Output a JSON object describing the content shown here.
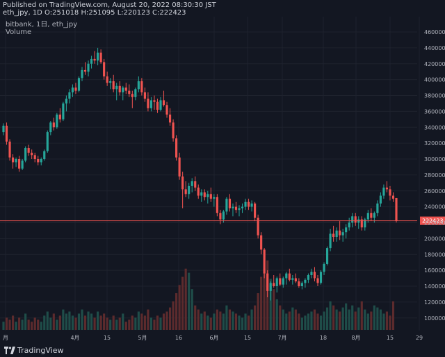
{
  "header": {
    "published": "Published on TradingView.com, August 20, 2022 08:30:30 JST",
    "ohlc": "eth_jpy, 1D O:251018 H:251095 L:220123 C:222423"
  },
  "legend": {
    "series": "bitbank, 1日, eth_jpy",
    "volume": "Volume"
  },
  "footer": {
    "logo_text": "TradingView",
    "logo_icon": "tradingview-logo-icon"
  },
  "colors": {
    "up": "#26a69a",
    "down": "#ef5350",
    "up_vol": "#1f4d49",
    "down_vol": "#5c2b2d",
    "grid": "#1e222d",
    "bg": "#131722"
  },
  "chart_data": {
    "type": "candlestick",
    "title": "eth_jpy",
    "source": "bitbank",
    "interval": "1日",
    "xlabel": "",
    "ylabel": "",
    "ylim": [
      90000,
      470000
    ],
    "yticks": [
      100000,
      120000,
      140000,
      160000,
      180000,
      200000,
      220000,
      240000,
      260000,
      280000,
      300000,
      320000,
      340000,
      360000,
      380000,
      400000,
      420000,
      440000,
      460000
    ],
    "xtick_labels": [
      "月",
      "4月",
      "15",
      "5月",
      "16",
      "6月",
      "15",
      "7月",
      "18",
      "8月",
      "15",
      "29"
    ],
    "last_price": 222423,
    "last_price_label": "222423",
    "candles_ohlc": [
      [
        334000,
        345000,
        330000,
        342000
      ],
      [
        342000,
        346000,
        318000,
        322000
      ],
      [
        322000,
        325000,
        298000,
        302000
      ],
      [
        302000,
        306000,
        288000,
        296000
      ],
      [
        296000,
        302000,
        290000,
        300000
      ],
      [
        300000,
        304000,
        284000,
        288000
      ],
      [
        288000,
        300000,
        286000,
        298000
      ],
      [
        298000,
        316000,
        296000,
        314000
      ],
      [
        314000,
        318000,
        304000,
        308000
      ],
      [
        308000,
        312000,
        300000,
        305000
      ],
      [
        305000,
        308000,
        296000,
        300000
      ],
      [
        300000,
        304000,
        292000,
        296000
      ],
      [
        296000,
        302000,
        292000,
        300000
      ],
      [
        300000,
        312000,
        298000,
        310000
      ],
      [
        310000,
        336000,
        308000,
        334000
      ],
      [
        334000,
        348000,
        330000,
        346000
      ],
      [
        346000,
        352000,
        336000,
        340000
      ],
      [
        340000,
        358000,
        338000,
        356000
      ],
      [
        356000,
        364000,
        346000,
        350000
      ],
      [
        350000,
        372000,
        348000,
        370000
      ],
      [
        370000,
        380000,
        360000,
        376000
      ],
      [
        376000,
        388000,
        370000,
        384000
      ],
      [
        384000,
        394000,
        378000,
        390000
      ],
      [
        390000,
        396000,
        382000,
        386000
      ],
      [
        386000,
        404000,
        384000,
        402000
      ],
      [
        402000,
        416000,
        398000,
        412000
      ],
      [
        412000,
        422000,
        406000,
        410000
      ],
      [
        410000,
        424000,
        404000,
        420000
      ],
      [
        420000,
        430000,
        414000,
        426000
      ],
      [
        426000,
        436000,
        420000,
        424000
      ],
      [
        424000,
        440000,
        418000,
        434000
      ],
      [
        434000,
        438000,
        420000,
        422000
      ],
      [
        422000,
        426000,
        400000,
        404000
      ],
      [
        404000,
        410000,
        392000,
        396000
      ],
      [
        396000,
        402000,
        388000,
        398000
      ],
      [
        398000,
        406000,
        384000,
        388000
      ],
      [
        388000,
        396000,
        374000,
        392000
      ],
      [
        392000,
        398000,
        380000,
        384000
      ],
      [
        384000,
        392000,
        374000,
        390000
      ],
      [
        390000,
        396000,
        382000,
        386000
      ],
      [
        386000,
        394000,
        378000,
        382000
      ],
      [
        382000,
        386000,
        364000,
        378000
      ],
      [
        378000,
        390000,
        374000,
        388000
      ],
      [
        388000,
        404000,
        384000,
        398000
      ],
      [
        398000,
        402000,
        380000,
        384000
      ],
      [
        384000,
        390000,
        372000,
        376000
      ],
      [
        376000,
        384000,
        360000,
        364000
      ],
      [
        364000,
        378000,
        360000,
        374000
      ],
      [
        374000,
        380000,
        362000,
        372000
      ],
      [
        372000,
        376000,
        358000,
        362000
      ],
      [
        362000,
        378000,
        360000,
        374000
      ],
      [
        374000,
        386000,
        366000,
        368000
      ],
      [
        368000,
        372000,
        352000,
        356000
      ],
      [
        356000,
        364000,
        342000,
        346000
      ],
      [
        346000,
        350000,
        322000,
        326000
      ],
      [
        326000,
        330000,
        298000,
        302000
      ],
      [
        302000,
        308000,
        274000,
        278000
      ],
      [
        278000,
        284000,
        238000,
        262000
      ],
      [
        262000,
        272000,
        252000,
        256000
      ],
      [
        256000,
        270000,
        250000,
        266000
      ],
      [
        266000,
        276000,
        258000,
        272000
      ],
      [
        272000,
        278000,
        260000,
        264000
      ],
      [
        264000,
        268000,
        250000,
        254000
      ],
      [
        254000,
        262000,
        246000,
        258000
      ],
      [
        258000,
        262000,
        248000,
        252000
      ],
      [
        252000,
        260000,
        244000,
        256000
      ],
      [
        256000,
        264000,
        246000,
        250000
      ],
      [
        250000,
        256000,
        240000,
        252000
      ],
      [
        252000,
        256000,
        228000,
        232000
      ],
      [
        232000,
        236000,
        218000,
        224000
      ],
      [
        224000,
        236000,
        220000,
        234000
      ],
      [
        234000,
        252000,
        230000,
        250000
      ],
      [
        250000,
        256000,
        234000,
        238000
      ],
      [
        238000,
        244000,
        228000,
        240000
      ],
      [
        240000,
        246000,
        232000,
        236000
      ],
      [
        236000,
        242000,
        228000,
        238000
      ],
      [
        238000,
        244000,
        232000,
        240000
      ],
      [
        240000,
        250000,
        236000,
        246000
      ],
      [
        246000,
        250000,
        236000,
        240000
      ],
      [
        240000,
        248000,
        234000,
        244000
      ],
      [
        244000,
        246000,
        222000,
        226000
      ],
      [
        226000,
        230000,
        200000,
        204000
      ],
      [
        204000,
        208000,
        180000,
        186000
      ],
      [
        186000,
        188000,
        150000,
        156000
      ],
      [
        156000,
        160000,
        126000,
        134000
      ],
      [
        134000,
        146000,
        122000,
        144000
      ],
      [
        144000,
        154000,
        138000,
        140000
      ],
      [
        140000,
        152000,
        132000,
        150000
      ],
      [
        150000,
        156000,
        140000,
        142000
      ],
      [
        142000,
        152000,
        138000,
        150000
      ],
      [
        150000,
        158000,
        142000,
        156000
      ],
      [
        156000,
        162000,
        146000,
        148000
      ],
      [
        148000,
        154000,
        142000,
        150000
      ],
      [
        150000,
        156000,
        144000,
        146000
      ],
      [
        146000,
        150000,
        138000,
        140000
      ],
      [
        140000,
        146000,
        136000,
        144000
      ],
      [
        144000,
        150000,
        138000,
        148000
      ],
      [
        148000,
        156000,
        144000,
        154000
      ],
      [
        154000,
        162000,
        150000,
        158000
      ],
      [
        158000,
        164000,
        146000,
        150000
      ],
      [
        150000,
        154000,
        140000,
        144000
      ],
      [
        144000,
        160000,
        142000,
        158000
      ],
      [
        158000,
        170000,
        154000,
        168000
      ],
      [
        168000,
        190000,
        166000,
        188000
      ],
      [
        188000,
        212000,
        184000,
        206000
      ],
      [
        206000,
        216000,
        196000,
        202000
      ],
      [
        202000,
        214000,
        196000,
        210000
      ],
      [
        210000,
        222000,
        198000,
        204000
      ],
      [
        204000,
        212000,
        196000,
        208000
      ],
      [
        208000,
        218000,
        200000,
        214000
      ],
      [
        214000,
        226000,
        210000,
        220000
      ],
      [
        220000,
        232000,
        214000,
        228000
      ],
      [
        228000,
        232000,
        216000,
        220000
      ],
      [
        220000,
        228000,
        212000,
        224000
      ],
      [
        224000,
        228000,
        210000,
        214000
      ],
      [
        214000,
        226000,
        210000,
        224000
      ],
      [
        224000,
        236000,
        220000,
        232000
      ],
      [
        232000,
        238000,
        222000,
        226000
      ],
      [
        226000,
        234000,
        220000,
        232000
      ],
      [
        232000,
        248000,
        228000,
        244000
      ],
      [
        244000,
        258000,
        240000,
        254000
      ],
      [
        254000,
        268000,
        250000,
        264000
      ],
      [
        264000,
        272000,
        258000,
        262000
      ],
      [
        262000,
        266000,
        248000,
        254000
      ],
      [
        254000,
        258000,
        246000,
        250000
      ],
      [
        251018,
        251095,
        220123,
        222423
      ]
    ],
    "volumes": [
      4,
      6,
      5,
      7,
      4,
      6,
      5,
      8,
      5,
      4,
      6,
      5,
      4,
      7,
      9,
      6,
      8,
      5,
      7,
      10,
      8,
      9,
      7,
      6,
      8,
      10,
      7,
      9,
      8,
      6,
      9,
      7,
      8,
      6,
      5,
      7,
      5,
      6,
      8,
      4,
      5,
      7,
      6,
      9,
      8,
      7,
      10,
      6,
      5,
      7,
      6,
      8,
      9,
      11,
      14,
      18,
      22,
      26,
      30,
      28,
      20,
      12,
      10,
      8,
      9,
      7,
      6,
      8,
      10,
      9,
      8,
      12,
      10,
      9,
      8,
      7,
      6,
      8,
      7,
      10,
      12,
      18,
      26,
      30,
      34,
      25,
      20,
      15,
      12,
      10,
      8,
      9,
      11,
      10,
      8,
      6,
      7,
      8,
      9,
      10,
      8,
      7,
      9,
      11,
      14,
      12,
      10,
      9,
      11,
      13,
      10,
      12,
      9,
      11,
      14,
      10,
      8,
      9,
      12,
      11,
      10,
      8,
      9,
      7,
      14
    ]
  }
}
